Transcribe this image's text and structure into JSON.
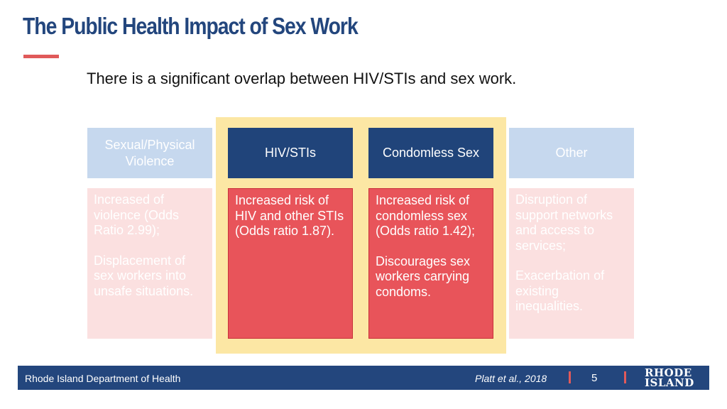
{
  "header": {
    "title": "The Public Health Impact of Sex Work",
    "subtitle": "There is a significant overlap between HIV/STIs and sex work."
  },
  "columns": [
    {
      "header": "Sexual/Physical Violence",
      "paragraphs": [
        "Increased of violence (Odds Ratio 2.99);",
        "Displacement of sex workers into unsafe situations."
      ]
    },
    {
      "header": "HIV/STIs",
      "paragraphs": [
        "Increased risk of HIV and other STIs (Odds ratio 1.87)."
      ]
    },
    {
      "header": "Condomless Sex",
      "paragraphs": [
        "Increased risk of condomless sex (Odds ratio 1.42);",
        "Discourages sex workers carrying condoms."
      ]
    },
    {
      "header": "Other",
      "paragraphs": [
        "Disruption of support networks and access to services;",
        "Exacerbation of existing inequalities."
      ]
    }
  ],
  "footer": {
    "organization": "Rhode Island Department of Health",
    "citation": "Platt et al., 2018",
    "page_number": "5",
    "logo_line1": "RHODE",
    "logo_line2": "ISLAND"
  },
  "colors": {
    "title": "#23467d",
    "accent": "#e05a5a",
    "highlight": "#fce7a4",
    "header_dark": "#20447a",
    "header_light": "#c6d8ee",
    "cell_strong": "#e8545a",
    "cell_light": "#fbe0e0"
  }
}
